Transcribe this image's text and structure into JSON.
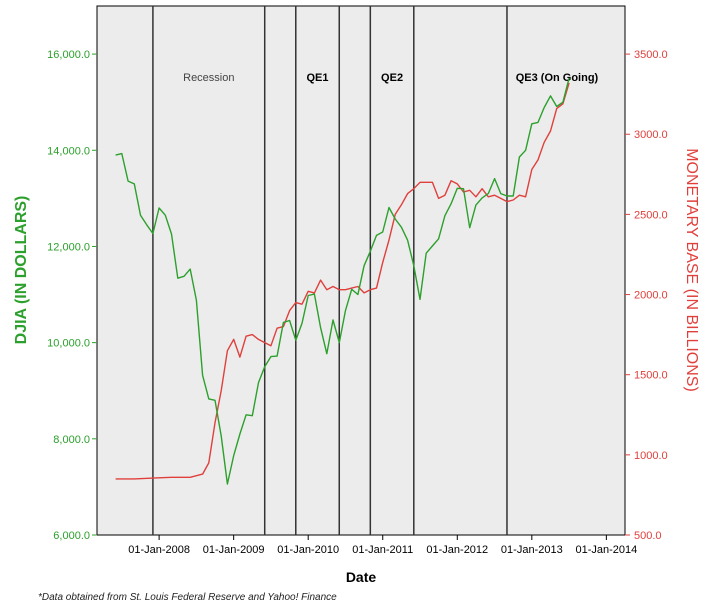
{
  "chart_data": {
    "type": "line",
    "xlabel": "Date",
    "ylabel_left": "DJIA (IN DOLLARS)",
    "ylabel_right": "MONETARY BASE (IN BILLIONS)",
    "note": "*Data obtained from St. Louis Federal Reserve and Yahoo! Finance",
    "x_ticks": [
      "01-Jan-2008",
      "01-Jan-2009",
      "01-Jan-2010",
      "01-Jan-2011",
      "01-Jan-2012",
      "01-Jan-2013",
      "01-Jan-2014"
    ],
    "x_range": [
      "2007-03-01",
      "2014-04-01"
    ],
    "y_left": {
      "ticks": [
        "6,000.0",
        "8,000.0",
        "10,000.0",
        "12,000.0",
        "14,000.0",
        "16,000.0"
      ],
      "range": [
        6000,
        17000
      ]
    },
    "y_right": {
      "ticks": [
        "500.0",
        "1000.0",
        "1500.0",
        "2000.0",
        "2500.0",
        "3000.0",
        "3500.0"
      ],
      "range": [
        500,
        3800
      ]
    },
    "colors": {
      "djia": "#2ca02c",
      "monetary_base": "#e0403c",
      "left_axis": "#2ca02c",
      "right_axis": "#e0403c",
      "plot_bg": "#ececec"
    },
    "periods": [
      {
        "label": "Recession",
        "start": "2007-12-01",
        "end": "2009-06-01"
      },
      {
        "label": "QE1",
        "start": "2009-11-01",
        "end": "2010-06-01"
      },
      {
        "label": "QE2",
        "start": "2010-11-01",
        "end": "2011-06-01"
      },
      {
        "label": "QE3 (On Going)",
        "start": "2012-09-01",
        "end": ""
      }
    ],
    "series": [
      {
        "name": "DJIA",
        "axis": "left",
        "dates": [
          "2007-06-01",
          "2007-07-01",
          "2007-08-01",
          "2007-09-01",
          "2007-10-01",
          "2007-11-01",
          "2007-12-01",
          "2008-01-01",
          "2008-02-01",
          "2008-03-01",
          "2008-04-01",
          "2008-05-01",
          "2008-06-01",
          "2008-07-01",
          "2008-08-01",
          "2008-09-01",
          "2008-10-01",
          "2008-11-01",
          "2008-12-01",
          "2009-01-01",
          "2009-02-01",
          "2009-03-01",
          "2009-04-01",
          "2009-05-01",
          "2009-06-01",
          "2009-07-01",
          "2009-08-01",
          "2009-09-01",
          "2009-10-01",
          "2009-11-01",
          "2009-12-01",
          "2010-01-01",
          "2010-02-01",
          "2010-03-01",
          "2010-04-01",
          "2010-05-01",
          "2010-06-01",
          "2010-07-01",
          "2010-08-01",
          "2010-09-01",
          "2010-10-01",
          "2010-11-01",
          "2010-12-01",
          "2011-01-01",
          "2011-02-01",
          "2011-03-01",
          "2011-04-01",
          "2011-05-01",
          "2011-06-01",
          "2011-07-01",
          "2011-08-01",
          "2011-09-01",
          "2011-10-01",
          "2011-11-01",
          "2011-12-01",
          "2012-01-01",
          "2012-02-01",
          "2012-03-01",
          "2012-04-01",
          "2012-05-01",
          "2012-06-01",
          "2012-07-01",
          "2012-08-01",
          "2012-09-01",
          "2012-10-01",
          "2012-11-01",
          "2012-12-01",
          "2013-01-01",
          "2013-02-01",
          "2013-03-01",
          "2013-04-01",
          "2013-05-01",
          "2013-06-01",
          "2013-07-01"
        ],
        "values": [
          13900,
          13930,
          13360,
          13300,
          12650,
          12450,
          12270,
          12800,
          12650,
          12260,
          11340,
          11380,
          11530,
          10880,
          9320,
          8830,
          8800,
          8060,
          7060,
          7650,
          8100,
          8500,
          8480,
          9170,
          9500,
          9710,
          9720,
          10420,
          10460,
          10050,
          10400,
          10980,
          11010,
          10310,
          9770,
          10470,
          10000,
          10670,
          11110,
          11000,
          11600,
          11900,
          12230,
          12300,
          12810,
          12570,
          12400,
          12130,
          11600,
          10900,
          11860,
          12010,
          12160,
          12640,
          12890,
          13210,
          13200,
          12390,
          12860,
          13010,
          13100,
          13410,
          13100,
          13050,
          13050,
          13860,
          14000,
          14550,
          14580,
          14890,
          15130,
          14910,
          15000,
          15500
        ]
      },
      {
        "name": "Monetary Base",
        "axis": "right",
        "dates": [
          "2007-06-01",
          "2007-09-01",
          "2007-12-01",
          "2008-03-01",
          "2008-06-01",
          "2008-08-01",
          "2008-09-01",
          "2008-10-01",
          "2008-11-01",
          "2008-12-01",
          "2009-01-01",
          "2009-02-01",
          "2009-03-01",
          "2009-04-01",
          "2009-05-01",
          "2009-06-01",
          "2009-07-01",
          "2009-08-01",
          "2009-09-01",
          "2009-10-01",
          "2009-11-01",
          "2009-12-01",
          "2010-01-01",
          "2010-02-01",
          "2010-03-01",
          "2010-04-01",
          "2010-05-01",
          "2010-06-01",
          "2010-07-01",
          "2010-08-01",
          "2010-09-01",
          "2010-10-01",
          "2010-11-01",
          "2010-12-01",
          "2011-01-01",
          "2011-02-01",
          "2011-03-01",
          "2011-04-01",
          "2011-05-01",
          "2011-06-01",
          "2011-07-01",
          "2011-08-01",
          "2011-09-01",
          "2011-10-01",
          "2011-11-01",
          "2011-12-01",
          "2012-01-01",
          "2012-02-01",
          "2012-03-01",
          "2012-04-01",
          "2012-05-01",
          "2012-06-01",
          "2012-07-01",
          "2012-08-01",
          "2012-09-01",
          "2012-10-01",
          "2012-11-01",
          "2012-12-01",
          "2013-01-01",
          "2013-02-01",
          "2013-03-01",
          "2013-04-01",
          "2013-05-01",
          "2013-06-01",
          "2013-07-01"
        ],
        "values": [
          850,
          850,
          855,
          860,
          860,
          880,
          950,
          1200,
          1400,
          1650,
          1720,
          1610,
          1740,
          1750,
          1720,
          1700,
          1680,
          1790,
          1800,
          1900,
          1950,
          1940,
          2020,
          2010,
          2090,
          2030,
          2050,
          2030,
          2030,
          2040,
          2050,
          2010,
          2030,
          2040,
          2200,
          2340,
          2500,
          2560,
          2630,
          2660,
          2700,
          2700,
          2700,
          2600,
          2620,
          2710,
          2690,
          2640,
          2650,
          2610,
          2660,
          2610,
          2620,
          2600,
          2580,
          2590,
          2620,
          2610,
          2780,
          2840,
          2950,
          3020,
          3160,
          3190,
          3320
        ]
      }
    ]
  }
}
